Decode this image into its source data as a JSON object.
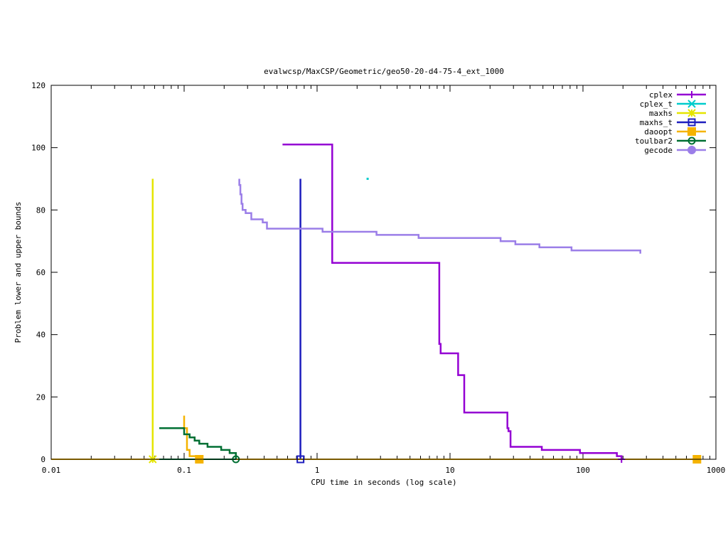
{
  "chart_data": {
    "type": "line",
    "title": "evalwcsp/MaxCSP/Geometric/geo50-20-d4-75-4_ext_1000",
    "xlabel": "CPU time in seconds (log scale)",
    "ylabel": "Problem lower and upper bounds",
    "x_scale": "log",
    "xlim": [
      0.01,
      1000
    ],
    "ylim": [
      0,
      120
    ],
    "x_ticks": [
      {
        "value": 0.01,
        "label": "0.01"
      },
      {
        "value": 0.1,
        "label": "0.1"
      },
      {
        "value": 1,
        "label": "1"
      },
      {
        "value": 10,
        "label": "10"
      },
      {
        "value": 100,
        "label": "100"
      },
      {
        "value": 1000,
        "label": "1000"
      }
    ],
    "y_ticks": [
      {
        "value": 0,
        "label": "0"
      },
      {
        "value": 20,
        "label": "20"
      },
      {
        "value": 40,
        "label": "40"
      },
      {
        "value": 60,
        "label": "60"
      },
      {
        "value": 80,
        "label": "80"
      },
      {
        "value": 100,
        "label": "100"
      },
      {
        "value": 120,
        "label": "120"
      }
    ],
    "grid": false,
    "legend_position": "top-right",
    "series": [
      {
        "name": "cplex",
        "color": "#9400d3",
        "marker": "plus",
        "upper": [
          [
            0.55,
            101
          ],
          [
            1.3,
            101
          ],
          [
            1.3,
            63
          ],
          [
            8.3,
            63
          ],
          [
            8.3,
            37
          ],
          [
            8.5,
            37
          ],
          [
            8.5,
            34
          ],
          [
            11.5,
            34
          ],
          [
            11.5,
            27
          ],
          [
            12.8,
            27
          ],
          [
            12.8,
            15
          ],
          [
            27,
            15
          ],
          [
            27,
            10
          ],
          [
            27.5,
            10
          ],
          [
            27.5,
            9
          ],
          [
            28.5,
            9
          ],
          [
            28.5,
            4
          ],
          [
            49,
            4
          ],
          [
            49,
            3
          ],
          [
            95,
            3
          ],
          [
            95,
            2
          ],
          [
            180,
            2
          ],
          [
            180,
            1
          ],
          [
            195,
            1
          ],
          [
            195,
            0
          ]
        ],
        "lower": [
          [
            0.01,
            0
          ],
          [
            195,
            0
          ]
        ],
        "markers": [
          [
            195,
            0
          ]
        ]
      },
      {
        "name": "cplex_t",
        "color": "#00cccc",
        "marker": "x",
        "upper": [
          [
            2.4,
            90
          ]
        ],
        "lower": [],
        "markers": []
      },
      {
        "name": "maxhs",
        "color": "#e5e500",
        "marker": "star",
        "upper": [
          [
            0.058,
            90
          ],
          [
            0.058,
            0
          ]
        ],
        "lower": [
          [
            0.01,
            0
          ],
          [
            0.058,
            0
          ]
        ],
        "markers": [
          [
            0.058,
            0
          ]
        ]
      },
      {
        "name": "maxhs_t",
        "color": "#1e1ebe",
        "marker": "square",
        "upper": [
          [
            0.75,
            90
          ],
          [
            0.75,
            0
          ]
        ],
        "lower": [
          [
            0.01,
            0
          ],
          [
            0.75,
            0
          ]
        ],
        "markers": [
          [
            0.75,
            0
          ]
        ]
      },
      {
        "name": "daoopt",
        "color": "#f5b300",
        "marker": "filled-square",
        "upper": [
          [
            0.1,
            14
          ],
          [
            0.1,
            10
          ],
          [
            0.105,
            10
          ],
          [
            0.105,
            3
          ],
          [
            0.11,
            3
          ],
          [
            0.11,
            1
          ],
          [
            0.13,
            1
          ],
          [
            0.13,
            0
          ]
        ],
        "lower": [
          [
            0.01,
            0
          ],
          [
            720,
            0
          ]
        ],
        "markers": [
          [
            0.13,
            0
          ],
          [
            720,
            0
          ]
        ]
      },
      {
        "name": "toulbar2",
        "color": "#006f33",
        "marker": "circle",
        "upper": [
          [
            0.065,
            10
          ],
          [
            0.1,
            10
          ],
          [
            0.1,
            8
          ],
          [
            0.11,
            8
          ],
          [
            0.11,
            7
          ],
          [
            0.12,
            7
          ],
          [
            0.12,
            6
          ],
          [
            0.13,
            6
          ],
          [
            0.13,
            5
          ],
          [
            0.15,
            5
          ],
          [
            0.15,
            4
          ],
          [
            0.19,
            4
          ],
          [
            0.19,
            3
          ],
          [
            0.22,
            3
          ],
          [
            0.22,
            2
          ],
          [
            0.245,
            2
          ],
          [
            0.245,
            0
          ]
        ],
        "lower": [
          [
            0.065,
            0
          ],
          [
            0.245,
            0
          ]
        ],
        "markers": [
          [
            0.245,
            0
          ]
        ]
      },
      {
        "name": "gecode",
        "color": "#9b7ee8",
        "marker": "filled-circle",
        "upper": [
          [
            0.26,
            90
          ],
          [
            0.26,
            88
          ],
          [
            0.265,
            88
          ],
          [
            0.265,
            85
          ],
          [
            0.27,
            85
          ],
          [
            0.27,
            82
          ],
          [
            0.275,
            82
          ],
          [
            0.275,
            80
          ],
          [
            0.29,
            80
          ],
          [
            0.29,
            79
          ],
          [
            0.32,
            79
          ],
          [
            0.32,
            77
          ],
          [
            0.39,
            77
          ],
          [
            0.39,
            76
          ],
          [
            0.42,
            76
          ],
          [
            0.42,
            74
          ],
          [
            1.1,
            74
          ],
          [
            1.1,
            73
          ],
          [
            2.8,
            73
          ],
          [
            2.8,
            72
          ],
          [
            5.8,
            72
          ],
          [
            5.8,
            71
          ],
          [
            24,
            71
          ],
          [
            24,
            70
          ],
          [
            31,
            70
          ],
          [
            31,
            69
          ],
          [
            47,
            69
          ],
          [
            47,
            68
          ],
          [
            82,
            68
          ],
          [
            82,
            67
          ],
          [
            270,
            67
          ],
          [
            270,
            66
          ]
        ],
        "lower": [],
        "markers": []
      }
    ]
  }
}
